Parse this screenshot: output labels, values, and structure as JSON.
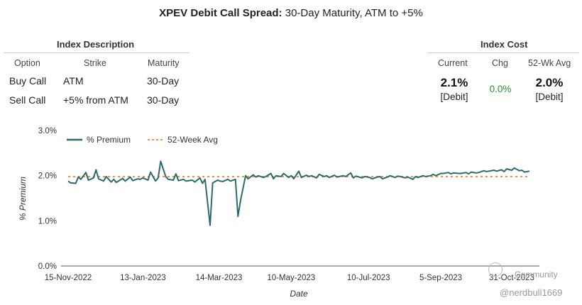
{
  "title": {
    "ticker": "XPEV Debit Call Spread:",
    "rest": "30-Day Maturity, ATM to +5%"
  },
  "index_description": {
    "heading": "Index Description",
    "columns": [
      "Option",
      "Strike",
      "Maturity"
    ],
    "rows": [
      {
        "option": "Buy Call",
        "strike": "ATM",
        "maturity": "30-Day"
      },
      {
        "option": "Sell Call",
        "strike": "+5% from ATM",
        "maturity": "30-Day"
      }
    ]
  },
  "index_cost": {
    "heading": "Index Cost",
    "columns": [
      "Current",
      "Chg",
      "52-Wk Avg"
    ],
    "current_value": "2.1%",
    "current_note": "[Debit]",
    "chg": "0.0%",
    "avg_value": "2.0%",
    "avg_note": "[Debit]",
    "colors": {
      "chg": "#2e8b2e"
    }
  },
  "watermark": {
    "community": "Community",
    "handle": "@nerdbull1669"
  },
  "chart_data": {
    "type": "line",
    "xlabel": "Date",
    "ylabel": "% Premium",
    "ylim": [
      0,
      3
    ],
    "yticks": [
      "0.0%",
      "1.0%",
      "2.0%",
      "3.0%"
    ],
    "xticks": [
      "15-Nov-2022",
      "13-Jan-2023",
      "14-Mar-2023",
      "10-May-2023",
      "10-Jul-2023",
      "5-Sep-2023",
      "31-Oct-2023"
    ],
    "legend": {
      "placement": "top-left",
      "entries": [
        "% Premium",
        "52-Week Avg"
      ]
    },
    "colors": {
      "premium": "#2d6b6b",
      "avg": "#f0904a"
    },
    "series": [
      {
        "name": "% Premium",
        "points": [
          [
            "2022-11-15",
            1.88
          ],
          [
            "2022-11-17",
            1.84
          ],
          [
            "2022-11-21",
            1.83
          ],
          [
            "2022-11-23",
            1.97
          ],
          [
            "2022-11-25",
            1.92
          ],
          [
            "2022-11-29",
            2.07
          ],
          [
            "2022-12-01",
            1.9
          ],
          [
            "2022-12-05",
            1.95
          ],
          [
            "2022-12-07",
            2.13
          ],
          [
            "2022-12-09",
            1.93
          ],
          [
            "2022-12-13",
            1.88
          ],
          [
            "2022-12-15",
            1.98
          ],
          [
            "2022-12-19",
            1.86
          ],
          [
            "2022-12-21",
            1.92
          ],
          [
            "2022-12-23",
            1.85
          ],
          [
            "2022-12-28",
            1.94
          ],
          [
            "2022-12-30",
            1.88
          ],
          [
            "2023-01-03",
            1.97
          ],
          [
            "2023-01-05",
            1.89
          ],
          [
            "2023-01-09",
            1.93
          ],
          [
            "2023-01-11",
            1.92
          ],
          [
            "2023-01-13",
            1.95
          ],
          [
            "2023-01-17",
            1.9
          ],
          [
            "2023-01-19",
            2.08
          ],
          [
            "2023-01-23",
            1.88
          ],
          [
            "2023-01-25",
            1.95
          ],
          [
            "2023-01-27",
            2.32
          ],
          [
            "2023-01-31",
            1.98
          ],
          [
            "2023-02-02",
            1.92
          ],
          [
            "2023-02-06",
            1.9
          ],
          [
            "2023-02-08",
            2.04
          ],
          [
            "2023-02-10",
            1.89
          ],
          [
            "2023-02-14",
            1.92
          ],
          [
            "2023-02-16",
            1.88
          ],
          [
            "2023-02-21",
            1.9
          ],
          [
            "2023-02-23",
            1.86
          ],
          [
            "2023-02-27",
            1.95
          ],
          [
            "2023-03-01",
            1.83
          ],
          [
            "2023-03-03",
            1.92
          ],
          [
            "2023-03-07",
            0.9
          ],
          [
            "2023-03-09",
            1.84
          ],
          [
            "2023-03-13",
            1.9
          ],
          [
            "2023-03-15",
            1.88
          ],
          [
            "2023-03-17",
            1.87
          ],
          [
            "2023-03-21",
            1.92
          ],
          [
            "2023-03-23",
            1.88
          ],
          [
            "2023-03-27",
            1.92
          ],
          [
            "2023-03-29",
            1.1
          ],
          [
            "2023-03-31",
            1.45
          ],
          [
            "2023-04-04",
            2.0
          ],
          [
            "2023-04-06",
            1.93
          ],
          [
            "2023-04-10",
            2.02
          ],
          [
            "2023-04-12",
            1.97
          ],
          [
            "2023-04-14",
            2.0
          ],
          [
            "2023-04-18",
            1.96
          ],
          [
            "2023-04-20",
            1.98
          ],
          [
            "2023-04-24",
            2.05
          ],
          [
            "2023-04-26",
            1.93
          ],
          [
            "2023-04-28",
            2.0
          ],
          [
            "2023-05-02",
            1.98
          ],
          [
            "2023-05-04",
            2.05
          ],
          [
            "2023-05-08",
            1.96
          ],
          [
            "2023-05-10",
            2.0
          ],
          [
            "2023-05-12",
            1.93
          ],
          [
            "2023-05-16",
            2.1
          ],
          [
            "2023-05-18",
            1.96
          ],
          [
            "2023-05-22",
            2.01
          ],
          [
            "2023-05-24",
            1.98
          ],
          [
            "2023-05-26",
            2.0
          ],
          [
            "2023-05-30",
            1.95
          ],
          [
            "2023-06-01",
            2.03
          ],
          [
            "2023-06-05",
            1.98
          ],
          [
            "2023-06-07",
            2.0
          ],
          [
            "2023-06-09",
            1.96
          ],
          [
            "2023-06-13",
            2.01
          ],
          [
            "2023-06-15",
            1.97
          ],
          [
            "2023-06-20",
            2.0
          ],
          [
            "2023-06-22",
            1.98
          ],
          [
            "2023-06-26",
            2.06
          ],
          [
            "2023-06-28",
            1.95
          ],
          [
            "2023-06-30",
            1.99
          ],
          [
            "2023-07-05",
            1.95
          ],
          [
            "2023-07-07",
            1.98
          ],
          [
            "2023-07-11",
            1.96
          ],
          [
            "2023-07-13",
            1.93
          ],
          [
            "2023-07-17",
            1.97
          ],
          [
            "2023-07-19",
            1.98
          ],
          [
            "2023-07-21",
            1.93
          ],
          [
            "2023-07-25",
            1.97
          ],
          [
            "2023-07-27",
            2.0
          ],
          [
            "2023-07-31",
            1.96
          ],
          [
            "2023-08-02",
            1.99
          ],
          [
            "2023-08-04",
            1.98
          ],
          [
            "2023-08-08",
            1.95
          ],
          [
            "2023-08-10",
            1.97
          ],
          [
            "2023-08-14",
            1.92
          ],
          [
            "2023-08-16",
            1.98
          ],
          [
            "2023-08-18",
            1.96
          ],
          [
            "2023-08-22",
            2.0
          ],
          [
            "2023-08-24",
            1.98
          ],
          [
            "2023-08-28",
            2.0
          ],
          [
            "2023-08-30",
            2.03
          ],
          [
            "2023-09-01",
            2.0
          ],
          [
            "2023-09-05",
            2.05
          ],
          [
            "2023-09-07",
            2.05
          ],
          [
            "2023-09-11",
            2.07
          ],
          [
            "2023-09-13",
            2.04
          ],
          [
            "2023-09-15",
            2.06
          ],
          [
            "2023-09-19",
            2.05
          ],
          [
            "2023-09-21",
            2.05
          ],
          [
            "2023-09-25",
            2.07
          ],
          [
            "2023-09-27",
            2.04
          ],
          [
            "2023-09-29",
            2.08
          ],
          [
            "2023-10-03",
            2.06
          ],
          [
            "2023-10-05",
            2.07
          ],
          [
            "2023-10-09",
            2.11
          ],
          [
            "2023-10-11",
            2.09
          ],
          [
            "2023-10-13",
            2.1
          ],
          [
            "2023-10-17",
            2.12
          ],
          [
            "2023-10-19",
            2.1
          ],
          [
            "2023-10-23",
            2.13
          ],
          [
            "2023-10-25",
            2.09
          ],
          [
            "2023-10-27",
            2.15
          ],
          [
            "2023-10-31",
            2.12
          ],
          [
            "2023-11-02",
            2.17
          ],
          [
            "2023-11-06",
            2.11
          ],
          [
            "2023-11-08",
            2.12
          ],
          [
            "2023-11-10",
            2.08
          ],
          [
            "2023-11-14",
            2.1
          ]
        ]
      },
      {
        "name": "52-Week Avg",
        "value": 1.98
      }
    ]
  }
}
